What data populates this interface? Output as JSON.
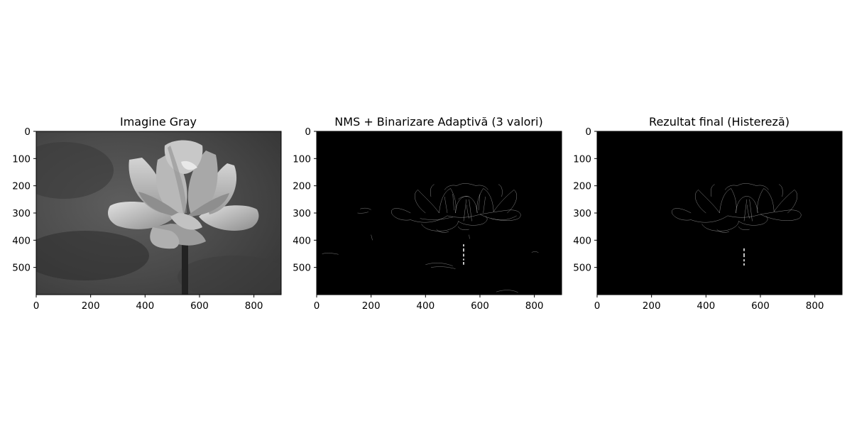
{
  "panels": [
    {
      "title": "Imagine Gray",
      "content": "grayscale photo of a lotus flower",
      "x_ticks": [
        "0",
        "200",
        "400",
        "600",
        "800"
      ],
      "y_ticks": [
        "0",
        "100",
        "200",
        "300",
        "400",
        "500"
      ]
    },
    {
      "title": "NMS + Binarizare Adaptivă (3 valori)",
      "content": "edge map: thin white outlines on black",
      "x_ticks": [
        "0",
        "200",
        "400",
        "600",
        "800"
      ],
      "y_ticks": [
        "0",
        "100",
        "200",
        "300",
        "400",
        "500"
      ]
    },
    {
      "title": "Rezultat final (Histereză)",
      "content": "final edge map: sparse white outlines on black",
      "x_ticks": [
        "0",
        "200",
        "400",
        "600",
        "800"
      ],
      "y_ticks": [
        "0",
        "100",
        "200",
        "300",
        "400",
        "500"
      ]
    }
  ],
  "colors": {
    "edges": "#e6e6e6",
    "background": "#000000"
  }
}
